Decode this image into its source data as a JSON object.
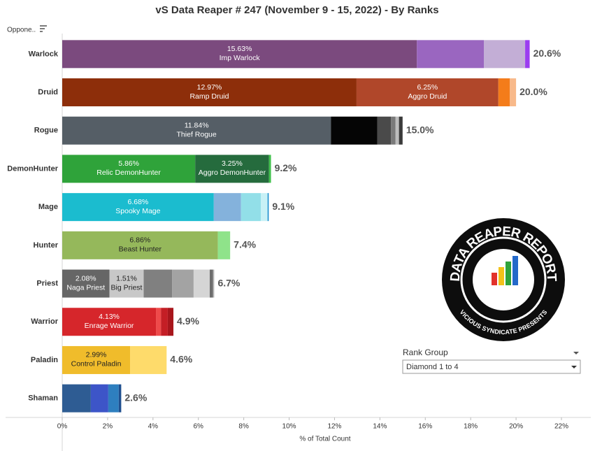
{
  "chart_data": {
    "type": "stacked-barh",
    "title": "vS Data Reaper #  247 (November 9 - 15, 2022) - By Ranks",
    "y_header": "Oppone..",
    "x_label": "% of Total Count",
    "xlim": [
      0,
      22
    ],
    "xticks": [
      {
        "value": 0,
        "label": "0%"
      },
      {
        "value": 2,
        "label": "2%"
      },
      {
        "value": 4,
        "label": "4%"
      },
      {
        "value": 6,
        "label": "6%"
      },
      {
        "value": 8,
        "label": "8%"
      },
      {
        "value": 10,
        "label": "10%"
      },
      {
        "value": 12,
        "label": "12%"
      },
      {
        "value": 14,
        "label": "14%"
      },
      {
        "value": 16,
        "label": "16%"
      },
      {
        "value": 18,
        "label": "18%"
      },
      {
        "value": 20,
        "label": "20%"
      },
      {
        "value": 22,
        "label": "22%"
      }
    ],
    "categories": [
      "Warlock",
      "Druid",
      "Rogue",
      "DemonHunter",
      "Mage",
      "Hunter",
      "Priest",
      "Warrior",
      "Paladin",
      "Shaman"
    ],
    "totals": [
      20.6,
      20.0,
      15.0,
      9.2,
      9.1,
      7.4,
      6.7,
      4.9,
      4.6,
      2.6
    ],
    "total_labels": [
      "20.6%",
      "20.0%",
      "15.0%",
      "9.2%",
      "9.1%",
      "7.4%",
      "6.7%",
      "4.9%",
      "4.6%",
      "2.6%"
    ],
    "bars": [
      {
        "segments": [
          {
            "value": 15.63,
            "value_label": "15.63%",
            "name": "Imp Warlock",
            "color": "#7b4a7e"
          },
          {
            "value": 2.95,
            "color": "#9a66c0"
          },
          {
            "value": 1.82,
            "color": "#c3aed6"
          },
          {
            "value": 0.2,
            "color": "#9b3df0"
          }
        ]
      },
      {
        "segments": [
          {
            "value": 12.97,
            "value_label": "12.97%",
            "name": "Ramp Druid",
            "color": "#8d2e0a"
          },
          {
            "value": 6.25,
            "value_label": "6.25%",
            "name": "Aggro Druid",
            "color": "#b0472a"
          },
          {
            "value": 0.5,
            "color": "#f47c1a"
          },
          {
            "value": 0.28,
            "color": "#f8b98a"
          }
        ]
      },
      {
        "segments": [
          {
            "value": 11.84,
            "value_label": "11.84%",
            "name": "Thief Rogue",
            "color": "#555e66"
          },
          {
            "value": 2.05,
            "color": "#050505"
          },
          {
            "value": 0.6,
            "color": "#4a4a4a"
          },
          {
            "value": 0.2,
            "color": "#7a7a7a"
          },
          {
            "value": 0.15,
            "color": "#bdbdbd"
          },
          {
            "value": 0.16,
            "color": "#3a3a3a"
          }
        ]
      },
      {
        "segments": [
          {
            "value": 5.86,
            "value_label": "5.86%",
            "name": "Relic DemonHunter",
            "color": "#2fa33a"
          },
          {
            "value": 3.25,
            "value_label": "3.25%",
            "name": "Aggro DemonHunter",
            "color": "#256b3d"
          },
          {
            "value": 0.09,
            "color": "#3fc04a"
          }
        ]
      },
      {
        "segments": [
          {
            "value": 6.68,
            "value_label": "6.68%",
            "name": "Spooky Mage",
            "color": "#1bbccf"
          },
          {
            "value": 1.2,
            "color": "#84b2dc"
          },
          {
            "value": 0.87,
            "color": "#92dfe8"
          },
          {
            "value": 0.3,
            "color": "#c8f1f6"
          },
          {
            "value": 0.05,
            "color": "#1b8fcf"
          }
        ]
      },
      {
        "segments": [
          {
            "value": 6.86,
            "value_label": "6.86%",
            "name": "Beast Hunter",
            "color": "#95b85b"
          },
          {
            "value": 0.54,
            "color": "#8fe38a"
          }
        ]
      },
      {
        "segments": [
          {
            "value": 2.08,
            "value_label": "2.08%",
            "name": "Naga Priest",
            "color": "#666666"
          },
          {
            "value": 1.51,
            "value_label": "1.51%",
            "name": "Big Priest",
            "color": "#c8c8c8"
          },
          {
            "value": 1.25,
            "color": "#808080"
          },
          {
            "value": 0.95,
            "color": "#a3a3a3"
          },
          {
            "value": 0.71,
            "color": "#d5d5d5"
          },
          {
            "value": 0.15,
            "color": "#6e6e6e"
          },
          {
            "value": 0.05,
            "color": "#bcbcbc"
          }
        ]
      },
      {
        "segments": [
          {
            "value": 4.13,
            "value_label": "4.13%",
            "name": "Enrage Warrior",
            "color": "#d6262b"
          },
          {
            "value": 0.22,
            "color": "#ee4a4a"
          },
          {
            "value": 0.3,
            "color": "#c41e25"
          },
          {
            "value": 0.25,
            "color": "#a8161c"
          }
        ]
      },
      {
        "segments": [
          {
            "value": 2.99,
            "value_label": "2.99%",
            "name": "Control Paladin",
            "color": "#f0bc2b"
          },
          {
            "value": 1.61,
            "color": "#fedb6b"
          }
        ]
      },
      {
        "segments": [
          {
            "value": 1.26,
            "color": "#2e5c93"
          },
          {
            "value": 0.77,
            "color": "#3d55c8"
          },
          {
            "value": 0.46,
            "color": "#2e7fbf"
          },
          {
            "value": 0.11,
            "color": "#1f4f8f"
          }
        ]
      }
    ],
    "filter": {
      "label": "Rank Group",
      "selected": "Diamond 1 to 4"
    },
    "logo": {
      "title": "DATA REAPER REPORT",
      "subtitle": "VICIOUS SYNDICATE PRESENTS"
    }
  }
}
